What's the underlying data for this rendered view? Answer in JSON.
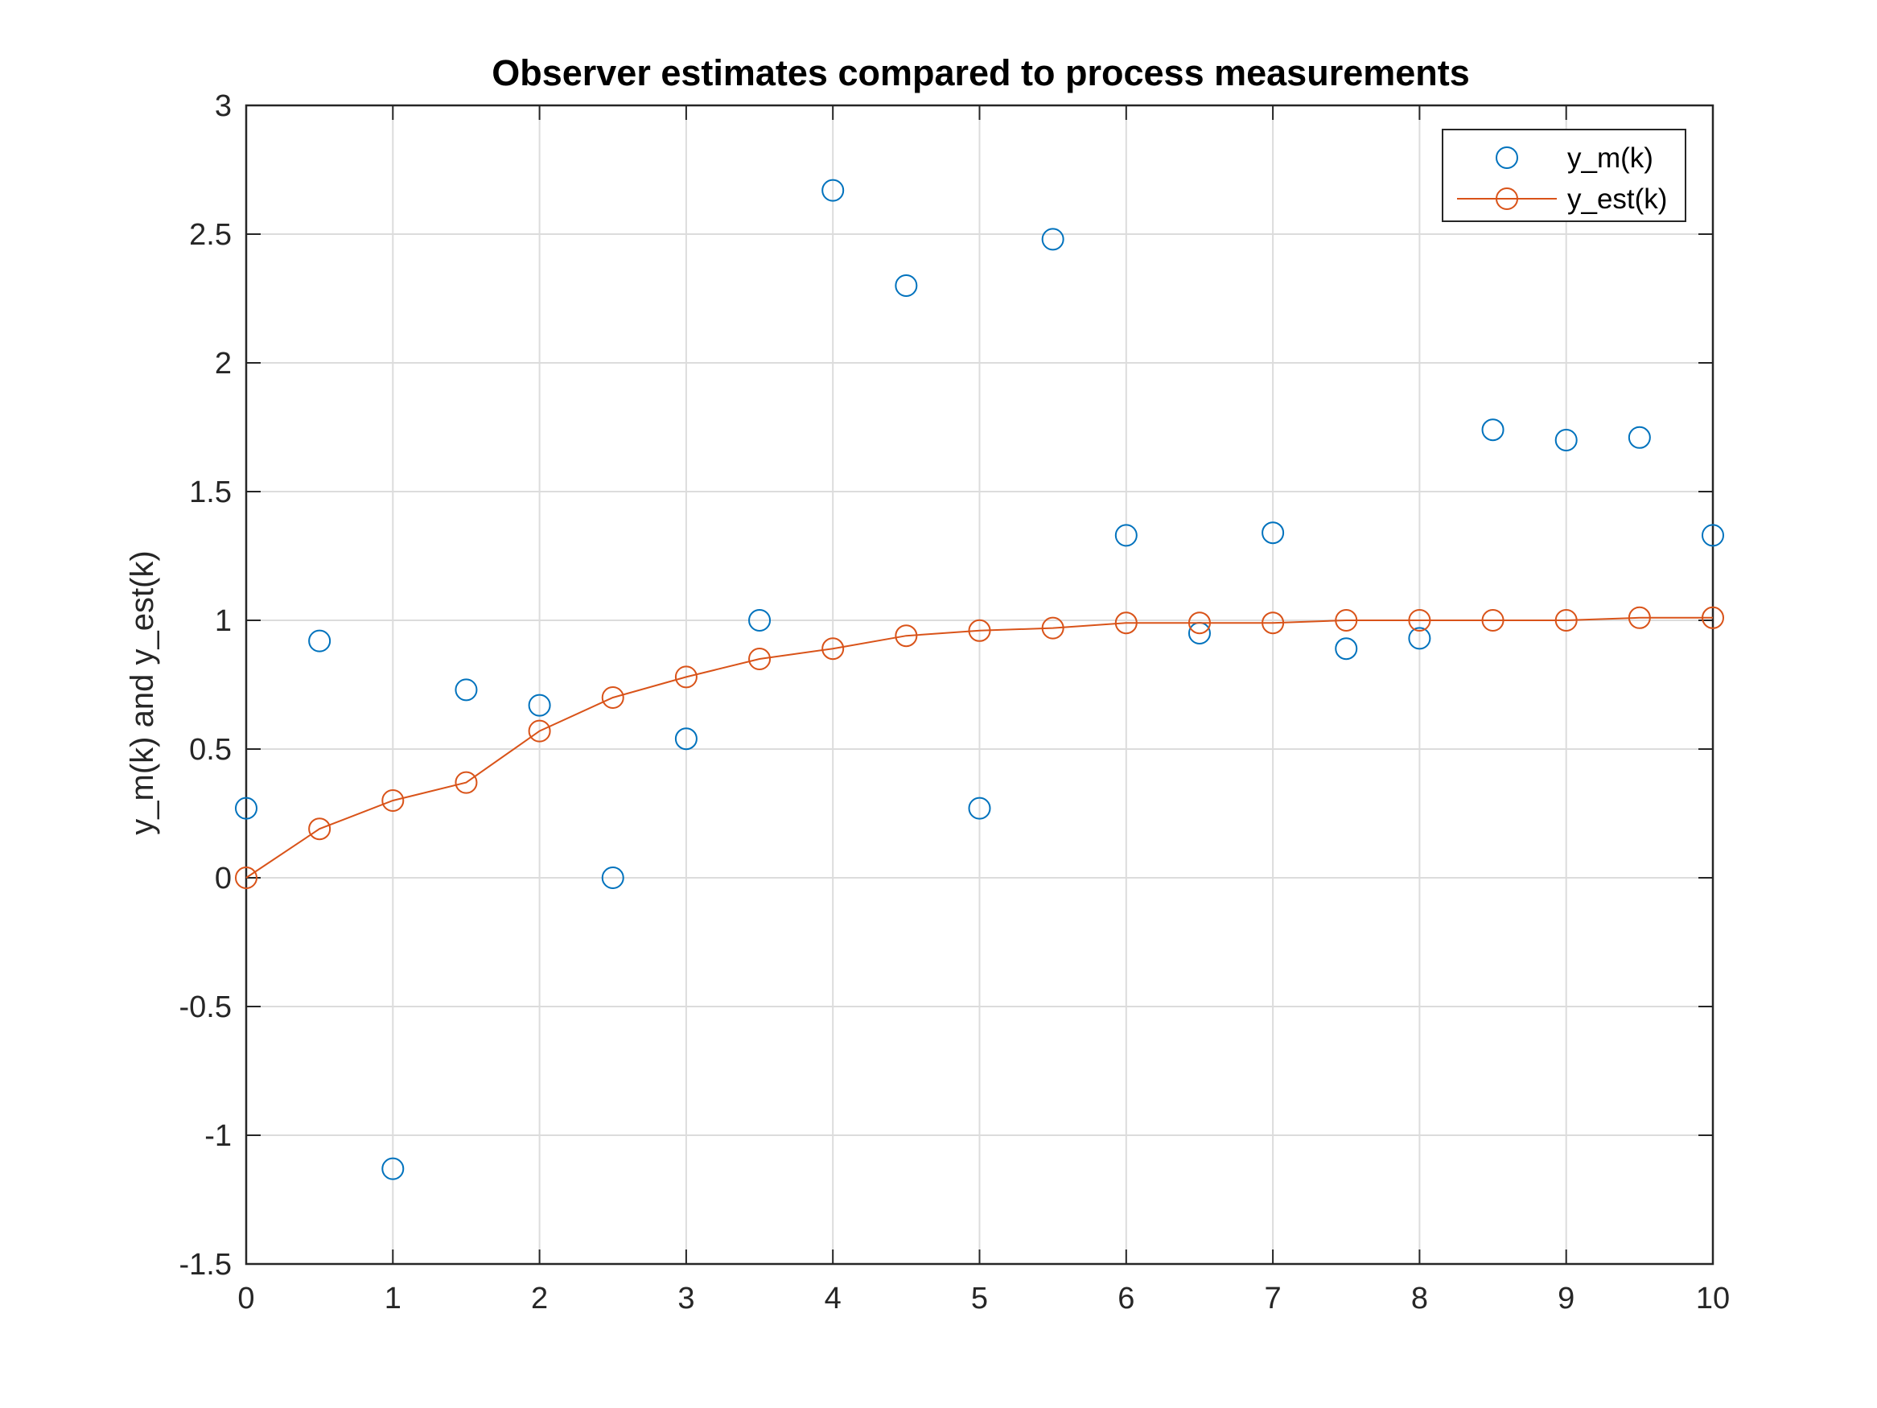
{
  "chart_data": {
    "type": "line",
    "title": "Observer estimates compared to process measurements",
    "xlabel": "",
    "ylabel": "y_m(k) and y_est(k)",
    "xlim": [
      0,
      10
    ],
    "ylim": [
      -1.5,
      3
    ],
    "xticks": [
      0,
      1,
      2,
      3,
      4,
      5,
      6,
      7,
      8,
      9,
      10
    ],
    "yticks": [
      -1.5,
      -1,
      -0.5,
      0,
      0.5,
      1,
      1.5,
      2,
      2.5,
      3
    ],
    "grid": true,
    "legend_position": "top-right",
    "series": [
      {
        "name": "y_m(k)",
        "style": "markers",
        "marker": "circle",
        "color": "#0072BD",
        "x": [
          0,
          0.5,
          1,
          1.5,
          2,
          2.5,
          3,
          3.5,
          4,
          4.5,
          5,
          5.5,
          6,
          6.5,
          7,
          7.5,
          8,
          8.5,
          9,
          9.5,
          10
        ],
        "y": [
          0.27,
          0.92,
          -1.13,
          0.73,
          0.67,
          0.0,
          0.54,
          1.0,
          2.67,
          2.3,
          0.27,
          2.48,
          1.33,
          0.95,
          1.34,
          0.89,
          0.93,
          1.74,
          1.7,
          1.71,
          1.33
        ]
      },
      {
        "name": "y_est(k)",
        "style": "line-markers",
        "marker": "circle",
        "color": "#D95319",
        "x": [
          0,
          0.5,
          1,
          1.5,
          2,
          2.5,
          3,
          3.5,
          4,
          4.5,
          5,
          5.5,
          6,
          6.5,
          7,
          7.5,
          8,
          8.5,
          9,
          9.5,
          10
        ],
        "y": [
          0.0,
          0.19,
          0.3,
          0.37,
          0.57,
          0.7,
          0.78,
          0.85,
          0.89,
          0.94,
          0.96,
          0.97,
          0.99,
          0.99,
          0.99,
          1.0,
          1.0,
          1.0,
          1.0,
          1.01,
          1.01
        ]
      }
    ]
  }
}
